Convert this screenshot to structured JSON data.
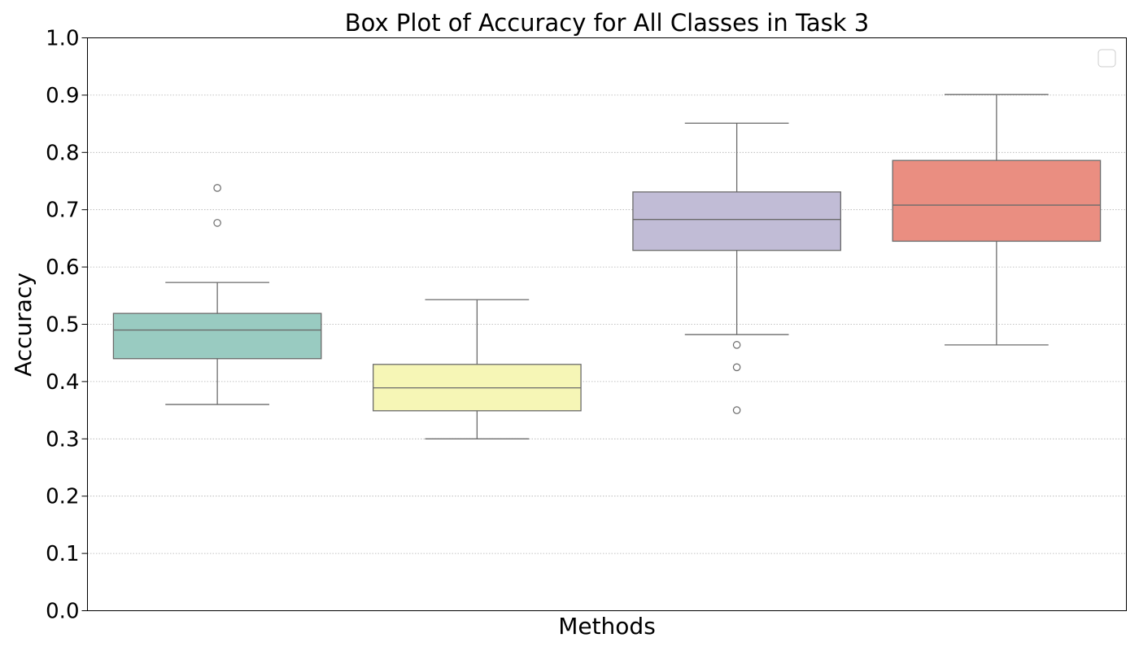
{
  "chart_data": {
    "type": "box",
    "title": "Box Plot of Accuracy for All Classes in Task 3",
    "xlabel": "Methods",
    "ylabel": "Accuracy",
    "ylim": [
      0.0,
      1.0
    ],
    "yticks": [
      "0.0",
      "0.1",
      "0.2",
      "0.3",
      "0.4",
      "0.5",
      "0.6",
      "0.7",
      "0.8",
      "0.9",
      "1.0"
    ],
    "grid": "horizontal-dotted",
    "legend": {
      "placement": "top-right",
      "entries": []
    },
    "series": [
      {
        "color": "#99cbc1",
        "whisker_low": 0.36,
        "q1": 0.44,
        "median": 0.49,
        "q3": 0.519,
        "whisker_high": 0.573,
        "outliers": [
          0.677,
          0.738
        ]
      },
      {
        "color": "#f6f6b6",
        "whisker_low": 0.3,
        "q1": 0.349,
        "median": 0.389,
        "q3": 0.43,
        "whisker_high": 0.543,
        "outliers": []
      },
      {
        "color": "#c1bcd6",
        "whisker_low": 0.482,
        "q1": 0.629,
        "median": 0.683,
        "q3": 0.731,
        "whisker_high": 0.851,
        "outliers": [
          0.464,
          0.425,
          0.35
        ]
      },
      {
        "color": "#ea8e81",
        "whisker_low": 0.464,
        "q1": 0.645,
        "median": 0.708,
        "q3": 0.786,
        "whisker_high": 0.901,
        "outliers": []
      }
    ]
  }
}
